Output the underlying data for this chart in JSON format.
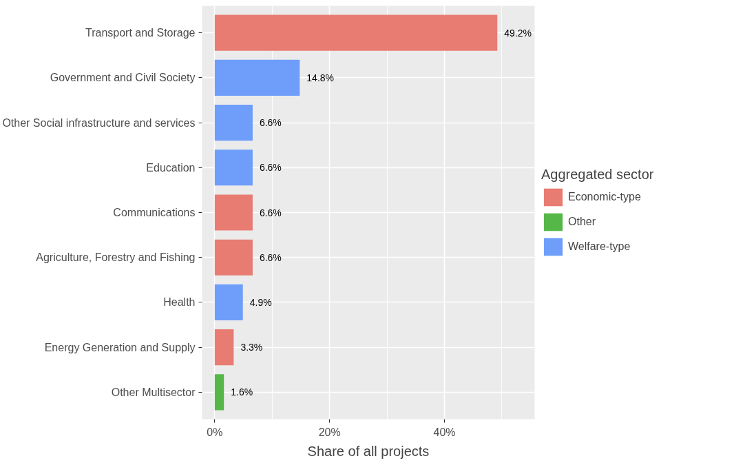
{
  "chart_data": {
    "type": "bar",
    "orientation": "horizontal",
    "xlabel": "Share of all projects",
    "legend_title": "Aggregated sector",
    "legend": "right",
    "grid": true,
    "categories": [
      "Transport and Storage",
      "Government and Civil Society",
      "Other Social infrastructure and services",
      "Education",
      "Communications",
      "Agriculture, Forestry and Fishing",
      "Health",
      "Energy Generation and Supply",
      "Other Multisector"
    ],
    "series": [
      {
        "name": "Economic-type",
        "color": "#e87c72",
        "values": [
          49.2,
          null,
          null,
          null,
          6.6,
          6.6,
          null,
          3.3,
          null
        ],
        "value_labels": [
          "49.2%",
          null,
          null,
          null,
          "6.6%",
          "6.6%",
          null,
          "3.3%",
          null
        ]
      },
      {
        "name": "Other",
        "color": "#55b748",
        "values": [
          null,
          null,
          null,
          null,
          null,
          null,
          null,
          null,
          1.6
        ],
        "value_labels": [
          null,
          null,
          null,
          null,
          null,
          null,
          null,
          null,
          "1.6%"
        ]
      },
      {
        "name": "Welfare-type",
        "color": "#6e9dfa",
        "values": [
          null,
          14.8,
          6.6,
          6.6,
          null,
          null,
          4.9,
          null,
          null
        ],
        "value_labels": [
          null,
          "14.8%",
          "6.6%",
          "6.6%",
          null,
          null,
          "4.9%",
          null,
          null
        ]
      }
    ],
    "xlim": [
      -2.2,
      55.7
    ],
    "xticks": [
      {
        "value": 0,
        "label": "0%"
      },
      {
        "value": 20,
        "label": "20%"
      },
      {
        "value": 40,
        "label": "40%"
      }
    ]
  }
}
